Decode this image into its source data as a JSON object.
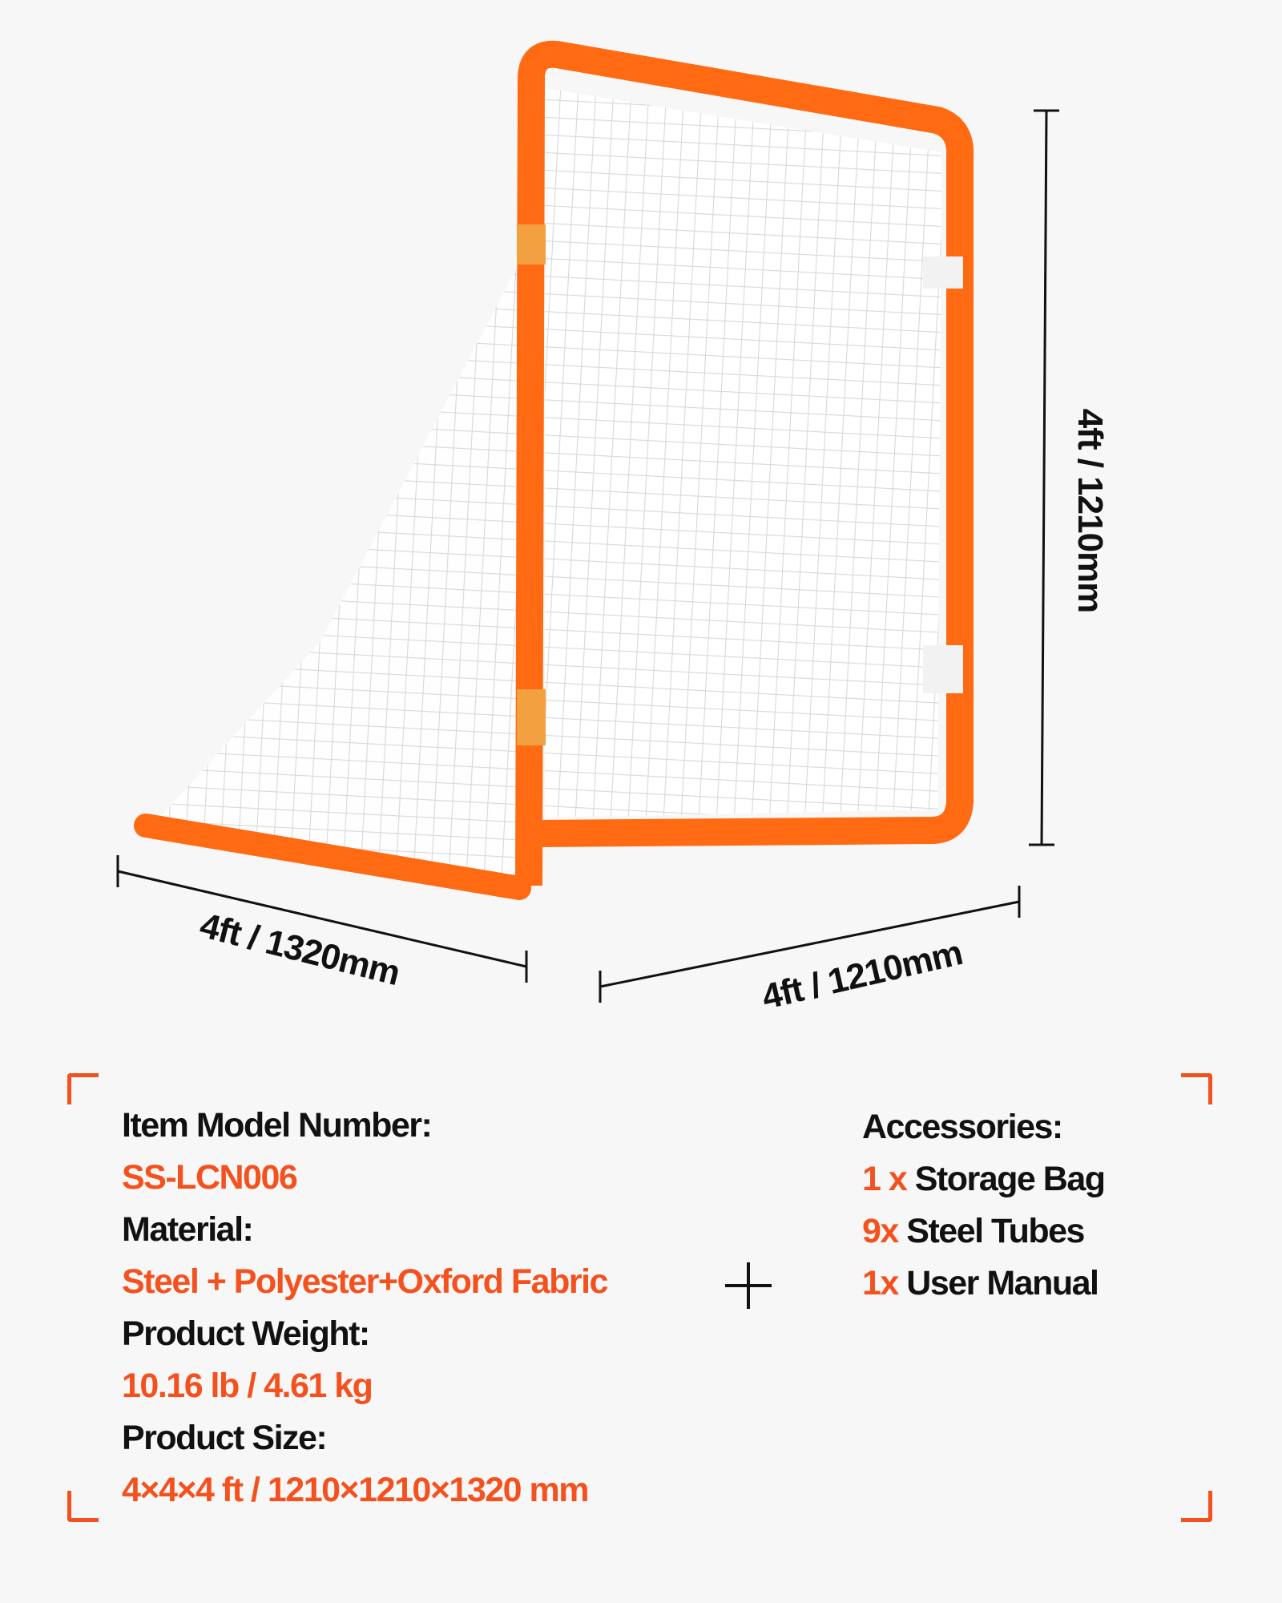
{
  "dimensions": {
    "height": "4ft / 1210mm",
    "length": "4ft / 1320mm",
    "width": "4ft / 1210mm"
  },
  "specs": [
    {
      "label": "Item Model Number:",
      "value": "SS-LCN006"
    },
    {
      "label": "Material:",
      "value": "Steel + Polyester+Oxford Fabric"
    },
    {
      "label": "Product Weight:",
      "value": "10.16 lb / 4.61 kg"
    },
    {
      "label": "Product Size:",
      "value": "4×4×4 ft / 1210×1210×1320 mm"
    }
  ],
  "accessories": {
    "title": "Accessories:",
    "items": [
      {
        "qty": "1 x",
        "name": "Storage Bag"
      },
      {
        "qty": "9x",
        "name": "Steel Tubes"
      },
      {
        "qty": "1x",
        "name": "User Manual"
      }
    ]
  },
  "colors": {
    "accent": "#f4511e",
    "frame": "#ff6a13",
    "text": "#111111",
    "background": "#f7f7f7"
  }
}
